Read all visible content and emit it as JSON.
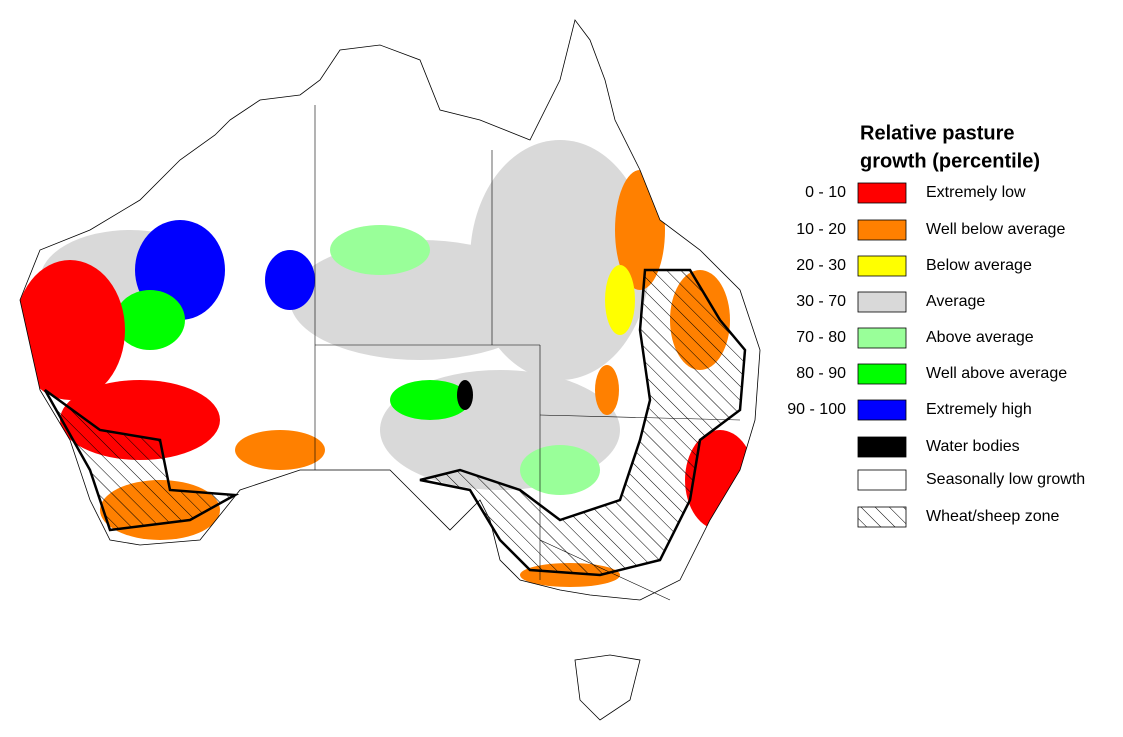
{
  "legend": {
    "title": [
      "Relative pasture",
      "growth (percentile)"
    ],
    "items": [
      {
        "range": "0 - 10",
        "label": "Extremely low",
        "color": "#ff0000"
      },
      {
        "range": "10 - 20",
        "label": "Well below average",
        "color": "#ff8000"
      },
      {
        "range": "20 - 30",
        "label": "Below average",
        "color": "#ffff00"
      },
      {
        "range": "30 - 70",
        "label": "Average",
        "color": "#d9d9d9"
      },
      {
        "range": "70 - 80",
        "label": "Above average",
        "color": "#99ff99"
      },
      {
        "range": "80 - 90",
        "label": "Well above average",
        "color": "#00ff00"
      },
      {
        "range": "90 - 100",
        "label": "Extremely high",
        "color": "#0000ff"
      },
      {
        "label": "Water bodies",
        "color": "#000000"
      },
      {
        "label": "Seasonally low growth",
        "color": "#ffffff"
      },
      {
        "label": "Wheat/sheep zone",
        "pattern": "hatch"
      }
    ]
  }
}
